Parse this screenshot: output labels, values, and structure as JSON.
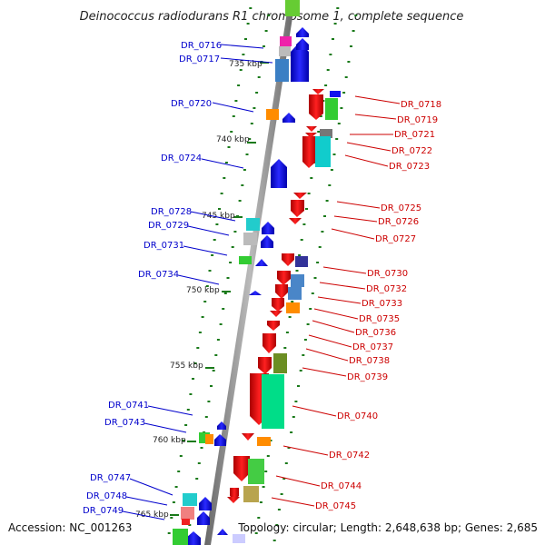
{
  "title": "Deinococcus radiodurans R1 chromosome 1, complete sequence",
  "accession": "Accession: NC_001263",
  "topology": "Topology: circular; Length: 2,648,638 bp; Genes: 2,685",
  "scale_labels": [
    "735 kbp",
    "740 kbp",
    "745 kbp",
    "750 kbp",
    "755 kbp",
    "760 kbp",
    "765 kbp"
  ],
  "colors": {
    "forward_label": "#0000cc",
    "reverse_label": "#cc0000",
    "forward_gene": "#0000ee",
    "reverse_gene": "#ee0000",
    "backbone": "#888888",
    "tick": "#1a7a1a"
  },
  "forward_labels": [
    "DR_0716",
    "DR_0717",
    "DR_0720",
    "DR_0724",
    "DR_0728",
    "DR_0729",
    "DR_0731",
    "DR_0734",
    "DR_0741",
    "DR_0743",
    "DR_0747",
    "DR_0748",
    "DR_0749"
  ],
  "reverse_labels": [
    "DR_0718",
    "DR_0719",
    "DR_0721",
    "DR_0722",
    "DR_0723",
    "DR_0725",
    "DR_0726",
    "DR_0727",
    "DR_0730",
    "DR_0732",
    "DR_0733",
    "DR_0735",
    "DR_0736",
    "DR_0737",
    "DR_0738",
    "DR_0739",
    "DR_0740",
    "DR_0742",
    "DR_0744",
    "DR_0745"
  ]
}
